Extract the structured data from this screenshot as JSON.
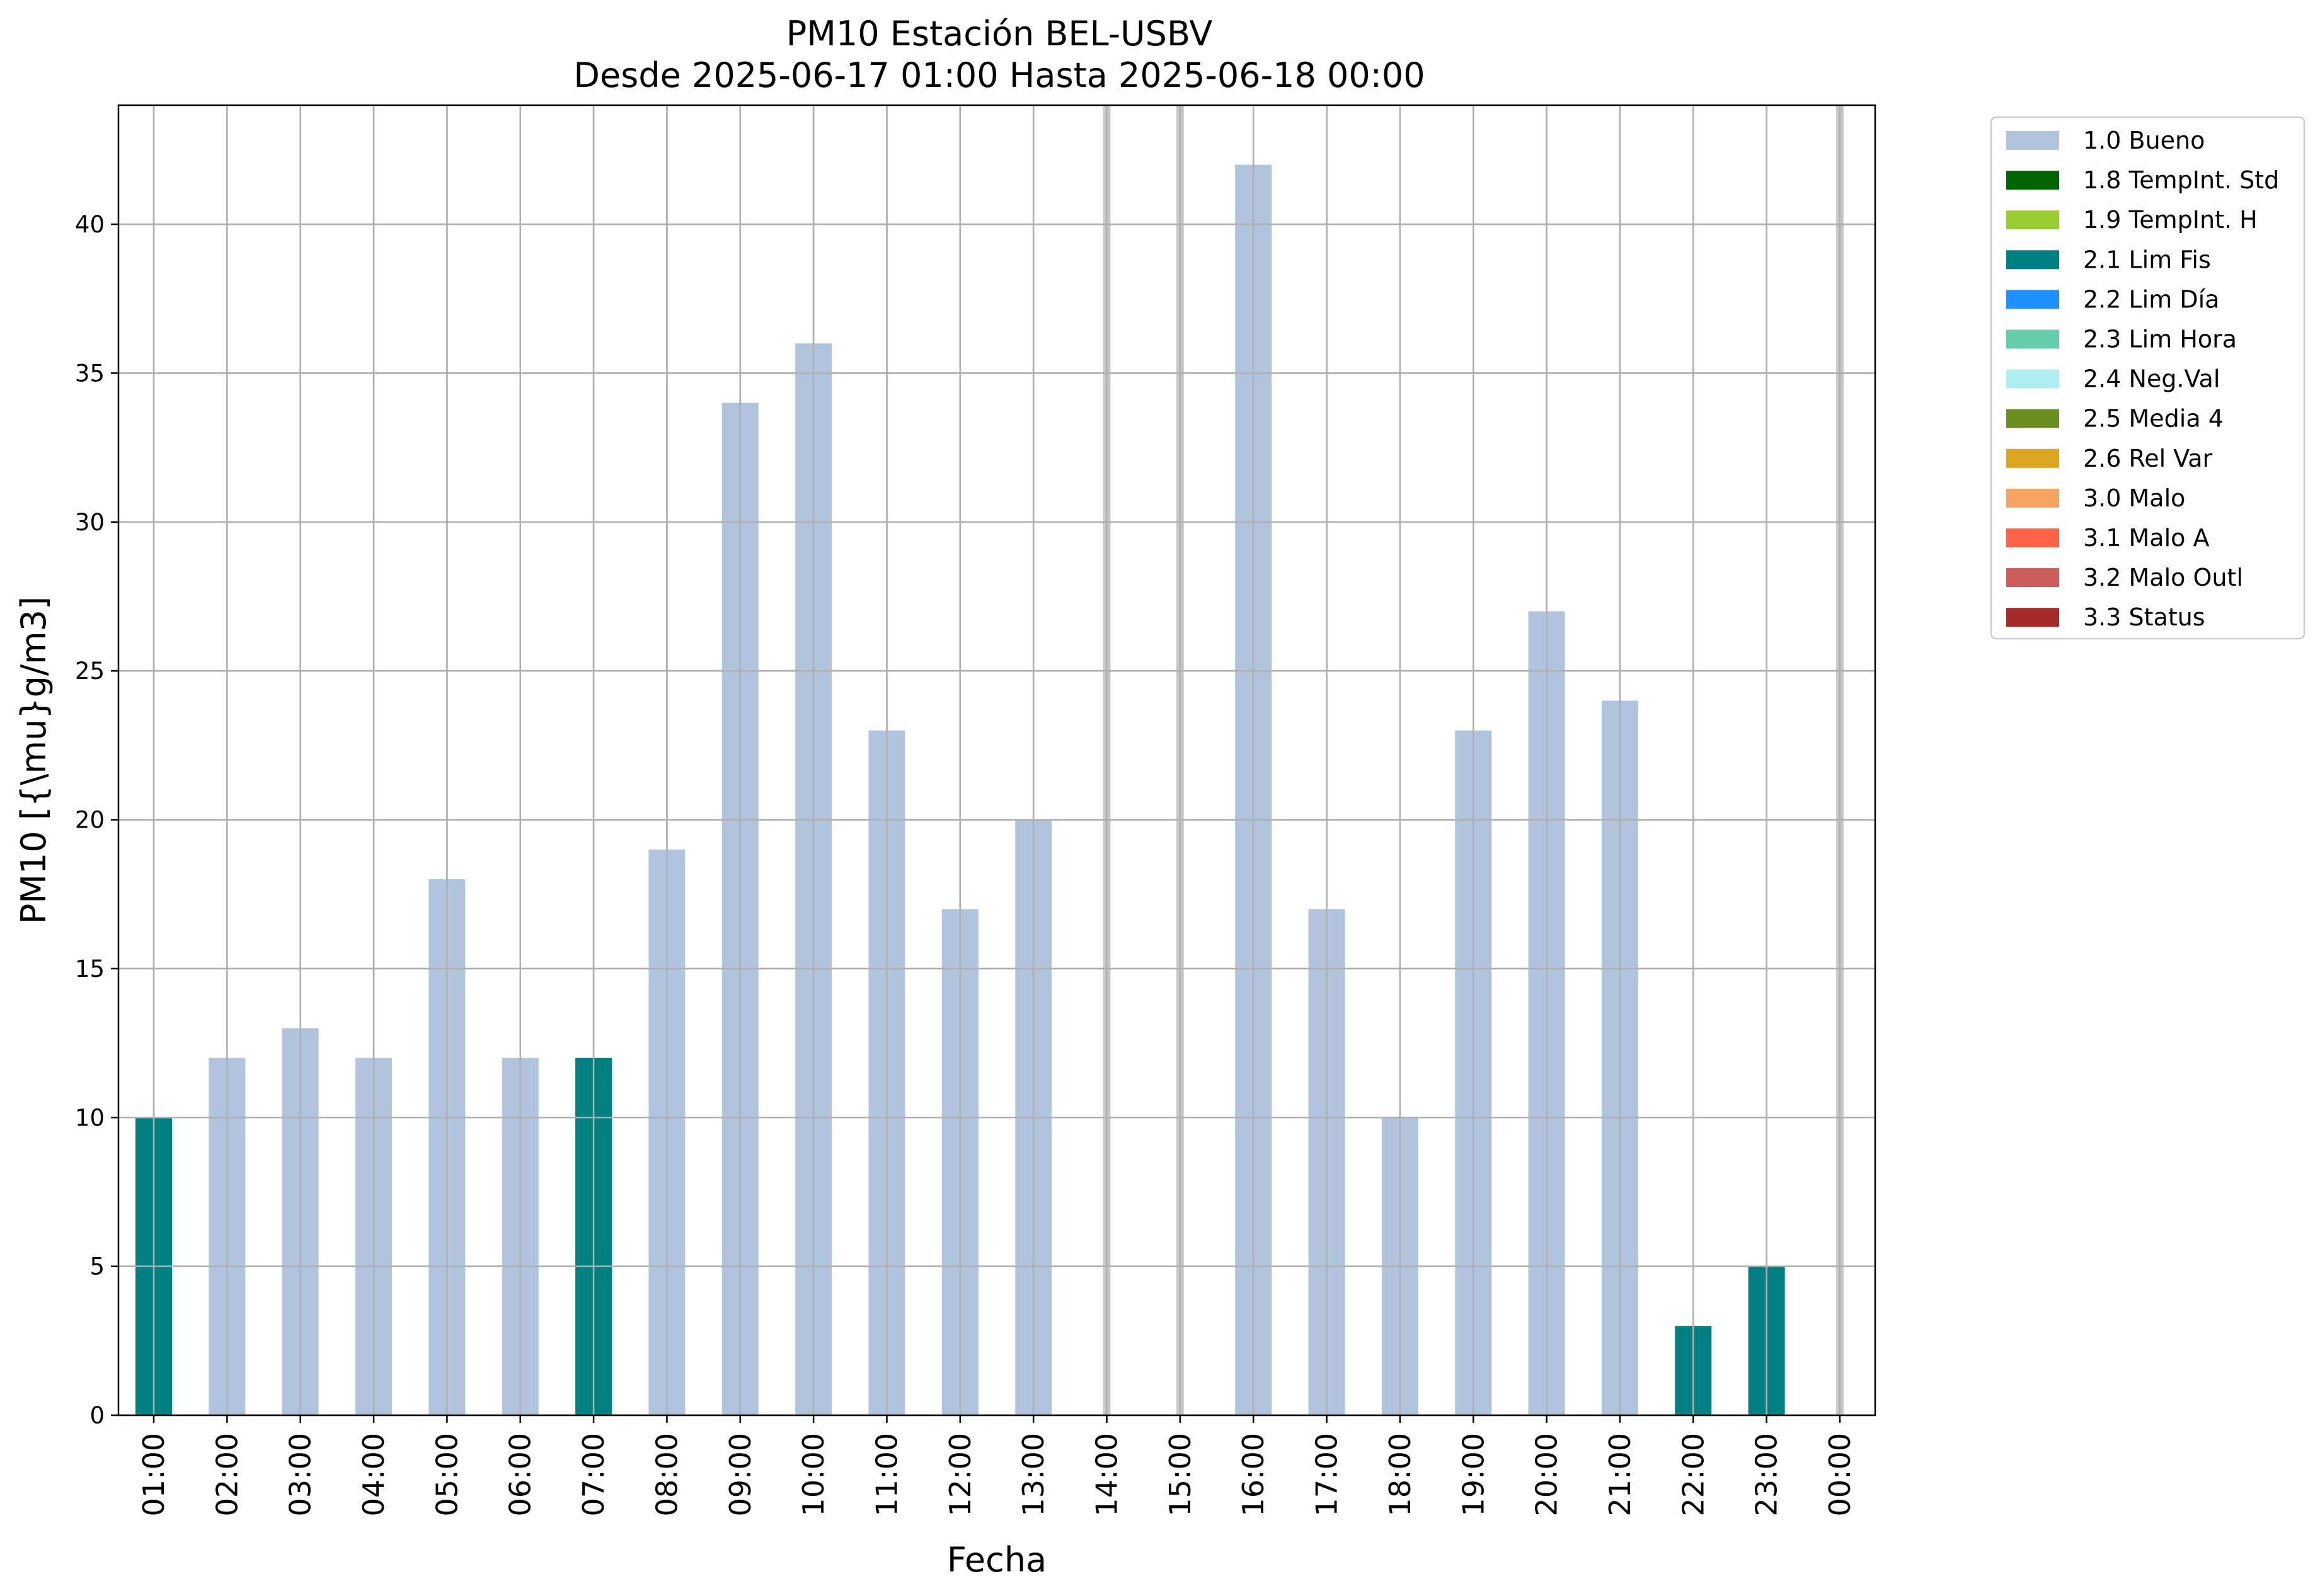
{
  "chart_data": {
    "type": "bar",
    "title": "PM10 Estación BEL-USBV",
    "subtitle": "Desde 2025-06-17 01:00 Hasta 2025-06-18 00:00",
    "xlabel": "Fecha",
    "ylabel": "PM10 [{\\mu}g/m3]",
    "ylim": [
      0,
      44
    ],
    "yticks": [
      0,
      5,
      10,
      15,
      20,
      25,
      30,
      35,
      40
    ],
    "grid": true,
    "legend_position": "outside-right",
    "categories": [
      "01:00",
      "02:00",
      "03:00",
      "04:00",
      "05:00",
      "06:00",
      "07:00",
      "08:00",
      "09:00",
      "10:00",
      "11:00",
      "12:00",
      "13:00",
      "14:00",
      "15:00",
      "16:00",
      "17:00",
      "18:00",
      "19:00",
      "20:00",
      "21:00",
      "22:00",
      "23:00",
      "00:00"
    ],
    "values": [
      10,
      12,
      13,
      12,
      18,
      12,
      12,
      19,
      34,
      36,
      23,
      17,
      20,
      null,
      null,
      42,
      17,
      10,
      23,
      27,
      24,
      3,
      5,
      null
    ],
    "flags": [
      "2.1 Lim Fis",
      "1.0 Bueno",
      "1.0 Bueno",
      "1.0 Bueno",
      "1.0 Bueno",
      "1.0 Bueno",
      "2.1 Lim Fis",
      "1.0 Bueno",
      "1.0 Bueno",
      "1.0 Bueno",
      "1.0 Bueno",
      "1.0 Bueno",
      "1.0 Bueno",
      null,
      null,
      "1.0 Bueno",
      "1.0 Bueno",
      "1.0 Bueno",
      "1.0 Bueno",
      "1.0 Bueno",
      "1.0 Bueno",
      "2.1 Lim Fis",
      "2.1 Lim Fis",
      null
    ],
    "missing_markers": [
      "14:00",
      "15:00",
      "00:00"
    ],
    "legend": [
      {
        "label": "1.0 Bueno",
        "color": "#b0c4de"
      },
      {
        "label": "1.8 TempInt. Std",
        "color": "#006400"
      },
      {
        "label": "1.9 TempInt. H",
        "color": "#9acd32"
      },
      {
        "label": "2.1 Lim Fis",
        "color": "#008080"
      },
      {
        "label": "2.2 Lim Día",
        "color": "#1e90ff"
      },
      {
        "label": "2.3 Lim Hora",
        "color": "#66cdaa"
      },
      {
        "label": "2.4 Neg.Val",
        "color": "#afeeee"
      },
      {
        "label": "2.5 Media 4",
        "color": "#6b8e23"
      },
      {
        "label": "2.6 Rel Var",
        "color": "#daa520"
      },
      {
        "label": "3.0 Malo",
        "color": "#f4a460"
      },
      {
        "label": "3.1 Malo A",
        "color": "#ff6347"
      },
      {
        "label": "3.2 Malo Outl",
        "color": "#cd5c5c"
      },
      {
        "label": "3.3 Status",
        "color": "#a52a2a"
      }
    ]
  }
}
